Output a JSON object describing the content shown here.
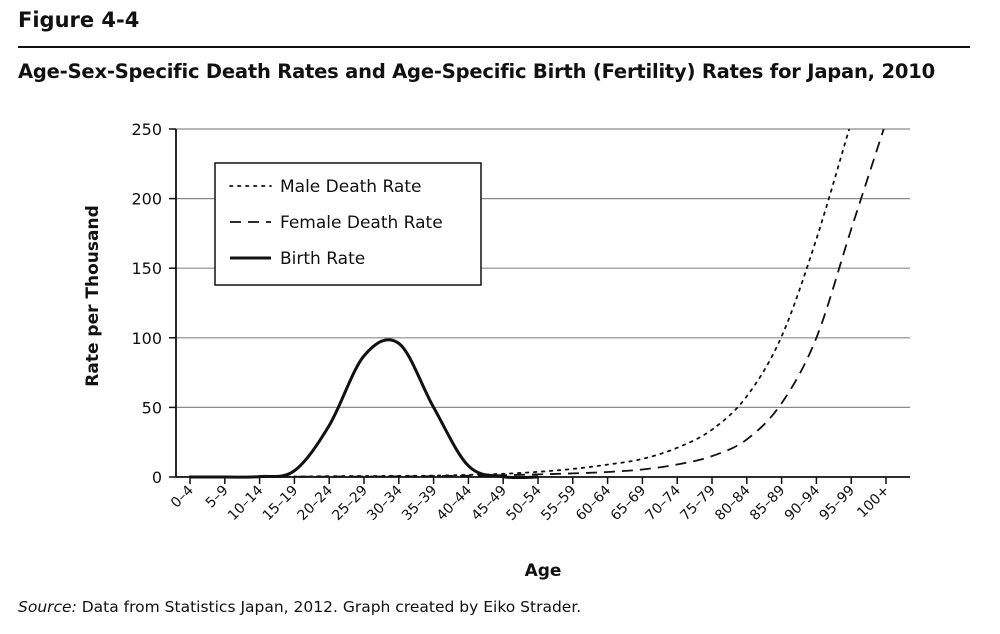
{
  "figure_label": "Figure 4-4",
  "figure_title": "Age-Sex-Specific Death Rates and Age-Specific Birth (Fertility) Rates for Japan, 2010",
  "source": {
    "label": "Source:",
    "text": " Data from Statistics Japan, 2012. Graph created by Eiko Strader."
  },
  "chart_data": {
    "type": "line",
    "title": "",
    "xlabel": "Age",
    "ylabel": "Rate per Thousand",
    "ylim": [
      0,
      250
    ],
    "yticks": [
      0,
      50,
      100,
      150,
      200,
      250
    ],
    "grid": "horizontal",
    "legend_position": "top-left",
    "categories": [
      "0–4",
      "5–9",
      "10–14",
      "15–19",
      "20–24",
      "25–29",
      "30–34",
      "35–39",
      "40–44",
      "45–49",
      "50–54",
      "55–59",
      "60–64",
      "65–69",
      "70–74",
      "75–79",
      "80–84",
      "85–89",
      "90–94",
      "95–99",
      "100+"
    ],
    "series": [
      {
        "name": "Male Death Rate",
        "style": "dotted",
        "values": [
          0.5,
          0.1,
          0.1,
          0.3,
          0.6,
          0.7,
          0.8,
          1.0,
          1.5,
          2.3,
          3.7,
          5.8,
          8.9,
          13,
          21,
          34,
          58,
          101,
          171,
          255,
          null
        ]
      },
      {
        "name": "Female Death Rate",
        "style": "dashed",
        "values": [
          0.4,
          0.1,
          0.1,
          0.2,
          0.3,
          0.3,
          0.4,
          0.6,
          0.9,
          1.3,
          1.9,
          2.6,
          3.6,
          5.4,
          9,
          15,
          27,
          53,
          100,
          178,
          255
        ]
      },
      {
        "name": "Birth Rate",
        "style": "solid",
        "values": [
          0,
          0,
          0.3,
          4.5,
          37,
          87,
          96,
          50,
          8,
          0.2,
          0,
          null,
          null,
          null,
          null,
          null,
          null,
          null,
          null,
          null,
          null
        ]
      }
    ],
    "colors": {
      "line": "#111111",
      "grid": "#8a8a8a"
    }
  }
}
